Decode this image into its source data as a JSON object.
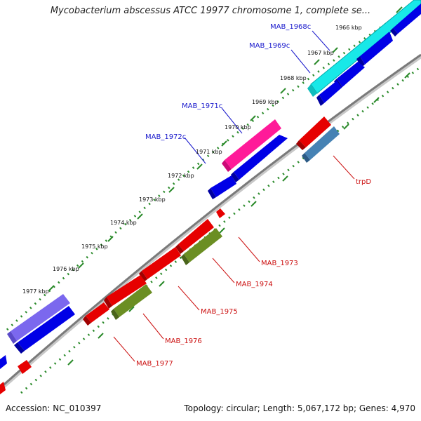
{
  "title": "Mycobacterium abscessus ATCC 19977 chromosome 1, complete se...",
  "footer": {
    "accession": "Accession: NC_010397",
    "topology": "Topology: circular; Length: 5,067,172 bp; Genes: 4,970"
  },
  "ticks": [
    "1966 kbp",
    "1967 kbp",
    "1968 kbp",
    "1969 kbp",
    "1970 kbp",
    "1971 kbp",
    "1972 kbp",
    "1973 kbp",
    "1974 kbp",
    "1975 kbp",
    "1976 kbp",
    "1977 kbp"
  ],
  "forward_labels": [
    "MAB_1968c",
    "MAB_1969c",
    "MAB_1971c",
    "MAB_1972c"
  ],
  "reverse_labels": [
    "trpD",
    "MAB_1973",
    "MAB_1974",
    "MAB_1975",
    "MAB_1976",
    "MAB_1977"
  ],
  "colors": {
    "backbone": "#8a8a8a",
    "tick_dots": "#2a8a2a",
    "gene_blue": "#0000e6",
    "gene_red": "#e60000",
    "gene_cyan": "#18e8e8",
    "gene_magenta": "#ff1a99",
    "gene_olive": "#6b8e23",
    "gene_steelblue": "#4682b4",
    "gene_slateblue": "#7b68ee",
    "label_forward": "#1a1acc",
    "label_reverse": "#cc1111"
  }
}
